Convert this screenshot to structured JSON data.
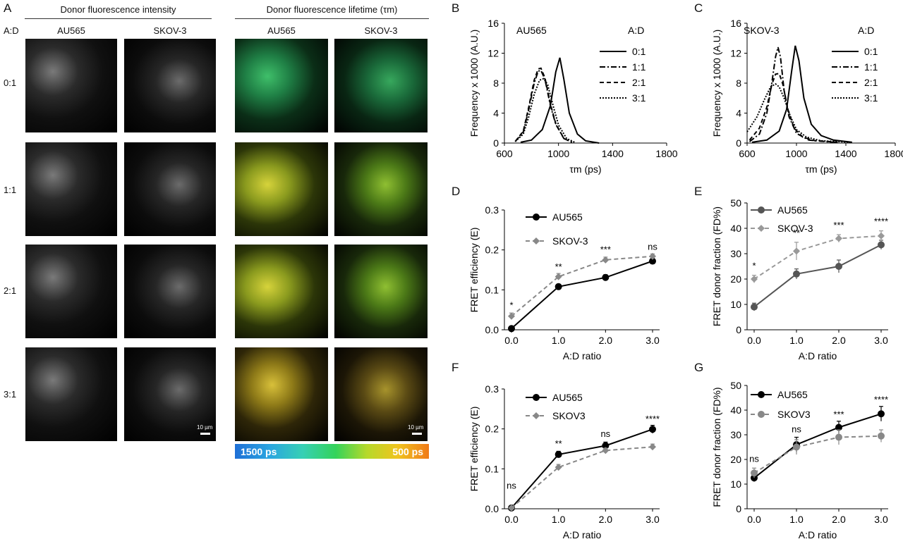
{
  "panel_a": {
    "label": "A",
    "header_intensity": "Donor fluorescence intensity",
    "header_lifetime": "Donor fluorescence lifetime (τm)",
    "col_au565": "AU565",
    "col_skov3": "SKOV-3",
    "col_au565_b": "AU565",
    "col_skov3_b": "SKOV-3",
    "ad_label": "A:D",
    "rows": [
      "0:1",
      "1:1",
      "2:1",
      "3:1"
    ],
    "scale_text": "10 µm",
    "colorbar_left": "1500 ps",
    "colorbar_right": "500 ps",
    "colors": {
      "colorbar_start": "#1f6fd6",
      "colorbar_end": "#f07a18"
    }
  },
  "panels": {
    "B": {
      "label": "B",
      "cell": "AU565",
      "legend_title": "A:D"
    },
    "C": {
      "label": "C",
      "cell": "SKOV-3",
      "legend_title": "A:D"
    },
    "D": {
      "label": "D"
    },
    "E": {
      "label": "E"
    },
    "F": {
      "label": "F"
    },
    "G": {
      "label": "G"
    }
  },
  "chart_data": [
    {
      "id": "B",
      "type": "line",
      "xlabel": "τm (ps)",
      "ylabel": "Frequency x 1000 (A.U.)",
      "xlim": [
        600,
        1800
      ],
      "ylim": [
        0,
        16
      ],
      "xticks": [
        600,
        1000,
        1400,
        1800
      ],
      "yticks": [
        0,
        4,
        8,
        12,
        16
      ],
      "legend_title": "A:D",
      "series": [
        {
          "name": "0:1",
          "style": "solid",
          "x": [
            720,
            800,
            880,
            940,
            980,
            1010,
            1040,
            1080,
            1140,
            1200,
            1300
          ],
          "y": [
            0.1,
            0.4,
            1.8,
            5,
            9.5,
            11.4,
            8.5,
            4,
            1.2,
            0.3,
            0
          ]
        },
        {
          "name": "1:1",
          "style": "dashdot",
          "x": [
            680,
            740,
            780,
            820,
            850,
            870,
            900,
            940,
            980,
            1040,
            1100
          ],
          "y": [
            0.2,
            1.5,
            4.5,
            8,
            9.6,
            9.7,
            8.5,
            5,
            2.5,
            0.6,
            0.1
          ]
        },
        {
          "name": "2:1",
          "style": "dashed",
          "x": [
            680,
            740,
            780,
            820,
            850,
            870,
            900,
            940,
            980,
            1040,
            1100
          ],
          "y": [
            0.2,
            1.6,
            4.8,
            8.4,
            9.9,
            10,
            8.7,
            5.2,
            2.6,
            0.6,
            0.1
          ]
        },
        {
          "name": "3:1",
          "style": "dotted",
          "x": [
            680,
            740,
            780,
            820,
            860,
            890,
            920,
            960,
            1000,
            1060,
            1120
          ],
          "y": [
            0.2,
            1.2,
            3.5,
            6.5,
            8.4,
            8.6,
            7.8,
            5,
            2.4,
            0.6,
            0.1
          ]
        }
      ]
    },
    {
      "id": "C",
      "type": "line",
      "xlabel": "τm (ps)",
      "ylabel": "Frequency x 1000 (A.U.)",
      "xlim": [
        600,
        1800
      ],
      "ylim": [
        0,
        16
      ],
      "xticks": [
        600,
        1000,
        1400,
        1800
      ],
      "yticks": [
        0,
        4,
        8,
        12,
        16
      ],
      "legend_title": "A:D",
      "series": [
        {
          "name": "0:1",
          "style": "solid",
          "x": [
            640,
            760,
            860,
            920,
            960,
            990,
            1020,
            1060,
            1120,
            1200,
            1300,
            1450
          ],
          "y": [
            0.1,
            0.4,
            1.6,
            4.5,
            9.5,
            13,
            11,
            6,
            2.5,
            1,
            0.4,
            0.1
          ]
        },
        {
          "name": "1:1",
          "style": "dashdot",
          "x": [
            620,
            700,
            760,
            800,
            830,
            850,
            870,
            900,
            940,
            1000,
            1100,
            1300
          ],
          "y": [
            0.2,
            1.2,
            4,
            8,
            11.5,
            12.8,
            11.5,
            7,
            3.5,
            1.3,
            0.4,
            0.1
          ]
        },
        {
          "name": "2:1",
          "style": "dashed",
          "x": [
            620,
            700,
            760,
            800,
            830,
            860,
            890,
            930,
            980,
            1050,
            1150,
            1350
          ],
          "y": [
            0.4,
            2,
            4.8,
            7.8,
            9.2,
            9.3,
            7.8,
            4.5,
            2,
            0.8,
            0.3,
            0.1
          ]
        },
        {
          "name": "3:1",
          "style": "dotted",
          "x": [
            600,
            680,
            740,
            790,
            830,
            860,
            900,
            950,
            1000,
            1080,
            1200,
            1450
          ],
          "y": [
            1.5,
            3.5,
            5.8,
            7.5,
            7.9,
            7.5,
            6,
            3.6,
            1.8,
            0.8,
            0.3,
            0.1
          ]
        }
      ]
    },
    {
      "id": "D",
      "type": "line",
      "xlabel": "A:D ratio",
      "ylabel": "FRET efficiency (E)",
      "xlim": [
        0,
        3
      ],
      "ylim": [
        0,
        0.3
      ],
      "xticks": [
        0,
        1,
        2,
        3
      ],
      "xticklabels": [
        "0.0",
        "1.0",
        "2.0",
        "3.0"
      ],
      "yticks": [
        0,
        0.1,
        0.2,
        0.3
      ],
      "yticklabels": [
        "0.0",
        "0.1",
        "0.2",
        "0.3"
      ],
      "series": [
        {
          "name": "AU565",
          "style": "solid",
          "color": "#000000",
          "marker": "circle",
          "x": [
            0,
            1,
            2,
            3
          ],
          "y": [
            0.003,
            0.108,
            0.131,
            0.172
          ],
          "err": [
            0.003,
            0.006,
            0.007,
            0.006
          ]
        },
        {
          "name": "SKOV-3",
          "style": "dashed",
          "color": "#888888",
          "marker": "diamond",
          "x": [
            0,
            1,
            2,
            3
          ],
          "y": [
            0.034,
            0.133,
            0.175,
            0.184
          ],
          "err": [
            0.008,
            0.008,
            0.007,
            0.006
          ]
        }
      ],
      "annotations": [
        {
          "x": 0,
          "text": "*",
          "y": 0.054
        },
        {
          "x": 1,
          "text": "**",
          "y": 0.15
        },
        {
          "x": 2,
          "text": "***",
          "y": 0.193
        },
        {
          "x": 3,
          "text": "ns",
          "y": 0.2
        }
      ]
    },
    {
      "id": "E",
      "type": "line",
      "xlabel": "A:D ratio",
      "ylabel": "FRET donor fraction (FD%)",
      "xlim": [
        0,
        3
      ],
      "ylim": [
        0,
        50
      ],
      "xticks": [
        0,
        1,
        2,
        3
      ],
      "xticklabels": [
        "0.0",
        "1.0",
        "2.0",
        "3.0"
      ],
      "yticks": [
        0,
        10,
        20,
        30,
        40,
        50
      ],
      "yticklabels": [
        "0",
        "10",
        "20",
        "30",
        "40",
        "50"
      ],
      "series": [
        {
          "name": "AU565",
          "style": "solid",
          "color": "#555555",
          "marker": "circle",
          "x": [
            0,
            1,
            2,
            3
          ],
          "y": [
            9,
            22,
            25,
            33.5
          ],
          "err": [
            1.5,
            2,
            2.5,
            1.8
          ]
        },
        {
          "name": "SKOV-3",
          "style": "dashed",
          "color": "#999999",
          "marker": "diamond",
          "x": [
            0,
            1,
            2,
            3
          ],
          "y": [
            20,
            31,
            36,
            37
          ],
          "err": [
            1.5,
            3.5,
            1.5,
            2
          ]
        }
      ],
      "annotations": [
        {
          "x": 0,
          "text": "*",
          "y": 24
        },
        {
          "x": 1,
          "text": "**",
          "y": 37
        },
        {
          "x": 2,
          "text": "***",
          "y": 40
        },
        {
          "x": 3,
          "text": "****",
          "y": 41.5
        }
      ]
    },
    {
      "id": "F",
      "type": "line",
      "xlabel": "A:D ratio",
      "ylabel": "FRET efficiency (E)",
      "xlim": [
        0,
        3
      ],
      "ylim": [
        0,
        0.3
      ],
      "xticks": [
        0,
        1,
        2,
        3
      ],
      "xticklabels": [
        "0.0",
        "1.0",
        "2.0",
        "3.0"
      ],
      "yticks": [
        0,
        0.1,
        0.2,
        0.3
      ],
      "yticklabels": [
        "0.0",
        "0.1",
        "0.2",
        "0.3"
      ],
      "series": [
        {
          "name": "AU565",
          "style": "solid",
          "color": "#000000",
          "marker": "circle",
          "x": [
            0,
            1,
            2,
            3
          ],
          "y": [
            0.002,
            0.136,
            0.158,
            0.199
          ],
          "err": [
            0.002,
            0.008,
            0.009,
            0.01
          ]
        },
        {
          "name": "SKOV3",
          "style": "dashed",
          "color": "#888888",
          "marker": "diamond",
          "x": [
            0,
            1,
            2,
            3
          ],
          "y": [
            0.002,
            0.104,
            0.146,
            0.155
          ],
          "err": [
            0.002,
            0.007,
            0.006,
            0.007
          ]
        }
      ],
      "annotations": [
        {
          "x": 0,
          "text": "ns",
          "y": 0.05
        },
        {
          "x": 1,
          "text": "**",
          "y": 0.155
        },
        {
          "x": 2,
          "text": "ns",
          "y": 0.18
        },
        {
          "x": 3,
          "text": "****",
          "y": 0.217
        }
      ]
    },
    {
      "id": "G",
      "type": "line",
      "xlabel": "A:D ratio",
      "ylabel": "FRET donor fraction (FD%)",
      "xlim": [
        0,
        3
      ],
      "ylim": [
        0,
        50
      ],
      "xticks": [
        0,
        1,
        2,
        3
      ],
      "xticklabels": [
        "0.0",
        "1.0",
        "2.0",
        "3.0"
      ],
      "yticks": [
        0,
        10,
        20,
        30,
        40,
        50
      ],
      "yticklabels": [
        "0",
        "10",
        "20",
        "30",
        "40",
        "50"
      ],
      "series": [
        {
          "name": "AU565",
          "style": "solid",
          "color": "#000000",
          "marker": "circle",
          "x": [
            0,
            1,
            2,
            3
          ],
          "y": [
            12.5,
            26,
            33,
            38.5
          ],
          "err": [
            1.5,
            3,
            2.5,
            3
          ]
        },
        {
          "name": "SKOV3",
          "style": "dashed",
          "color": "#888888",
          "marker": "circle",
          "x": [
            0,
            1,
            2,
            3
          ],
          "y": [
            14.5,
            25,
            29,
            29.5
          ],
          "err": [
            2,
            3,
            3,
            2.5
          ]
        }
      ],
      "annotations": [
        {
          "x": 0,
          "text": "ns",
          "y": 19
        },
        {
          "x": 1,
          "text": "ns",
          "y": 31
        },
        {
          "x": 2,
          "text": "***",
          "y": 37
        },
        {
          "x": 3,
          "text": "****",
          "y": 43
        }
      ]
    }
  ]
}
